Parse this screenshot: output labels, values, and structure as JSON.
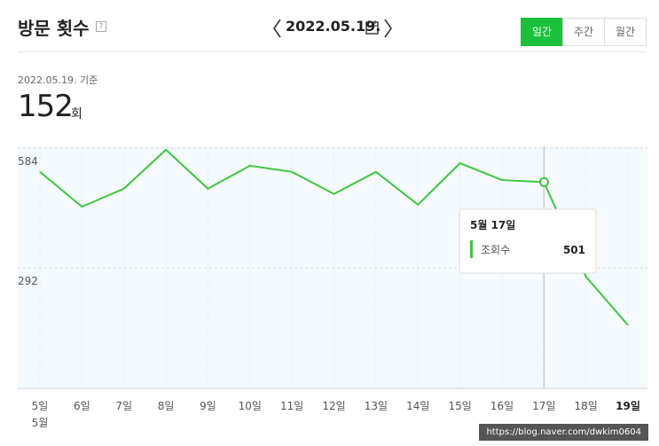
{
  "header": {
    "title": "방문 횟수",
    "help": "?",
    "date": "2022.05.19.",
    "tabs": [
      "일간",
      "주간",
      "월간"
    ],
    "active_tab": 0
  },
  "summary": {
    "basis": "2022.05.19. 기준",
    "count": 152,
    "unit": "회"
  },
  "chart_data": {
    "type": "line",
    "x": [
      "5일",
      "6일",
      "7일",
      "8일",
      "9일",
      "10일",
      "11일",
      "12일",
      "13일",
      "14일",
      "15일",
      "16일",
      "17일",
      "18일",
      "19일"
    ],
    "month_label": "5월",
    "series": [
      {
        "name": "조회수",
        "color": "#3fc63f",
        "values": [
          526,
          441,
          485,
          580,
          485,
          541,
          526,
          472,
          526,
          446,
          547,
          506,
          501,
          270,
          152
        ]
      }
    ],
    "ylim": [
      0,
      584
    ],
    "yticks": [
      292,
      584
    ],
    "grid": true,
    "highlight_index": 12,
    "tooltip": {
      "title": "5월 17일"
    }
  },
  "watermark": "https://blog.naver.com/dwkim0604"
}
